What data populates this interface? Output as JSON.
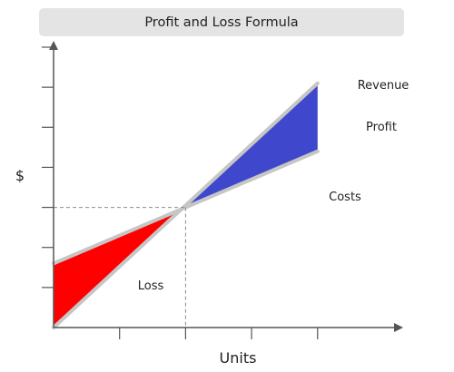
{
  "header": {
    "title": "Profit and Loss Formula"
  },
  "chart_data": {
    "type": "area",
    "title": "Profit and Loss Formula",
    "xlabel": "Units",
    "ylabel": "$",
    "x_ticks": 4,
    "y_ticks": 7,
    "series": [
      {
        "name": "Revenue",
        "x": [
          0,
          2
        ],
        "y": [
          0,
          6.1
        ]
      },
      {
        "name": "Costs",
        "x": [
          0,
          2
        ],
        "y": [
          1.6,
          4.4
        ]
      }
    ],
    "regions": [
      {
        "label": "Loss",
        "color": "#ff0000"
      },
      {
        "label": "Profit",
        "color": "#3f48cc"
      }
    ],
    "break_even": {
      "x": 1,
      "y": 3
    },
    "xlim": [
      0,
      2.6
    ],
    "ylim": [
      0,
      7
    ],
    "grid": false,
    "line_color": "#c6c6c6"
  }
}
